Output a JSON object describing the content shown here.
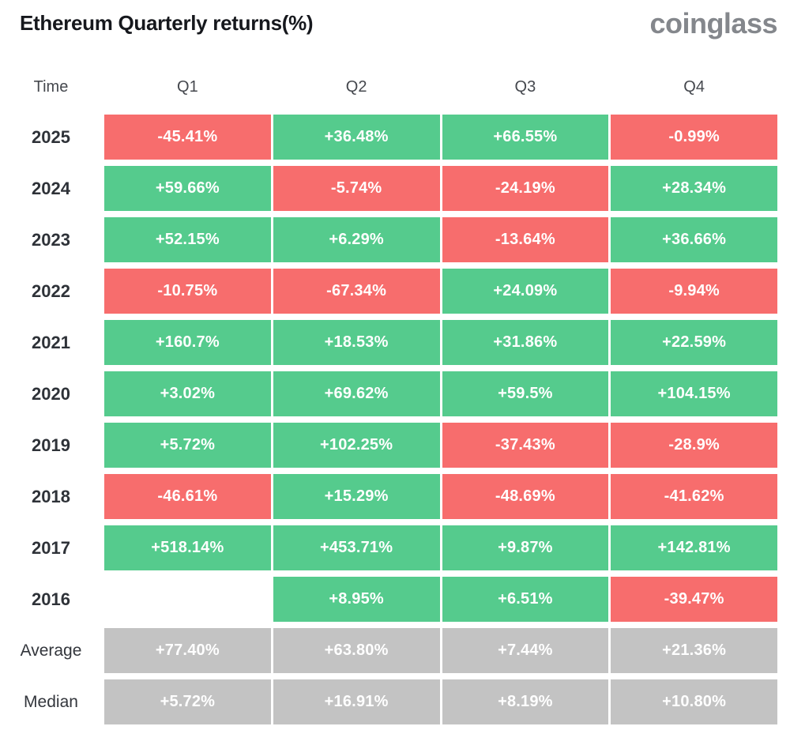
{
  "header": {
    "title": "Ethereum Quarterly returns(%)",
    "logo": "coinglass"
  },
  "colors": {
    "positive": "#55cb8d",
    "negative": "#f76d6d",
    "summary": "#c3c3c3"
  },
  "table": {
    "columns": [
      "Time",
      "Q1",
      "Q2",
      "Q3",
      "Q4"
    ],
    "rows": [
      {
        "label": "2025",
        "type": "year",
        "cells": [
          {
            "text": "-45.41%",
            "color": "negative"
          },
          {
            "text": "+36.48%",
            "color": "positive"
          },
          {
            "text": "+66.55%",
            "color": "positive"
          },
          {
            "text": "-0.99%",
            "color": "negative"
          }
        ]
      },
      {
        "label": "2024",
        "type": "year",
        "cells": [
          {
            "text": "+59.66%",
            "color": "positive"
          },
          {
            "text": "-5.74%",
            "color": "negative"
          },
          {
            "text": "-24.19%",
            "color": "negative"
          },
          {
            "text": "+28.34%",
            "color": "positive"
          }
        ]
      },
      {
        "label": "2023",
        "type": "year",
        "cells": [
          {
            "text": "+52.15%",
            "color": "positive"
          },
          {
            "text": "+6.29%",
            "color": "positive"
          },
          {
            "text": "-13.64%",
            "color": "negative"
          },
          {
            "text": "+36.66%",
            "color": "positive"
          }
        ]
      },
      {
        "label": "2022",
        "type": "year",
        "cells": [
          {
            "text": "-10.75%",
            "color": "negative"
          },
          {
            "text": "-67.34%",
            "color": "negative"
          },
          {
            "text": "+24.09%",
            "color": "positive"
          },
          {
            "text": "-9.94%",
            "color": "negative"
          }
        ]
      },
      {
        "label": "2021",
        "type": "year",
        "cells": [
          {
            "text": "+160.7%",
            "color": "positive"
          },
          {
            "text": "+18.53%",
            "color": "positive"
          },
          {
            "text": "+31.86%",
            "color": "positive"
          },
          {
            "text": "+22.59%",
            "color": "positive"
          }
        ]
      },
      {
        "label": "2020",
        "type": "year",
        "cells": [
          {
            "text": "+3.02%",
            "color": "positive"
          },
          {
            "text": "+69.62%",
            "color": "positive"
          },
          {
            "text": "+59.5%",
            "color": "positive"
          },
          {
            "text": "+104.15%",
            "color": "positive"
          }
        ]
      },
      {
        "label": "2019",
        "type": "year",
        "cells": [
          {
            "text": "+5.72%",
            "color": "positive"
          },
          {
            "text": "+102.25%",
            "color": "positive"
          },
          {
            "text": "-37.43%",
            "color": "negative"
          },
          {
            "text": "-28.9%",
            "color": "negative"
          }
        ]
      },
      {
        "label": "2018",
        "type": "year",
        "cells": [
          {
            "text": "-46.61%",
            "color": "negative"
          },
          {
            "text": "+15.29%",
            "color": "positive"
          },
          {
            "text": "-48.69%",
            "color": "negative"
          },
          {
            "text": "-41.62%",
            "color": "negative"
          }
        ]
      },
      {
        "label": "2017",
        "type": "year",
        "cells": [
          {
            "text": "+518.14%",
            "color": "positive"
          },
          {
            "text": "+453.71%",
            "color": "positive"
          },
          {
            "text": "+9.87%",
            "color": "positive"
          },
          {
            "text": "+142.81%",
            "color": "positive"
          }
        ]
      },
      {
        "label": "2016",
        "type": "year",
        "cells": [
          {
            "text": "",
            "color": "empty"
          },
          {
            "text": "+8.95%",
            "color": "positive"
          },
          {
            "text": "+6.51%",
            "color": "positive"
          },
          {
            "text": "-39.47%",
            "color": "negative"
          }
        ]
      },
      {
        "label": "Average",
        "type": "summary",
        "cells": [
          {
            "text": "+77.40%",
            "color": "summary"
          },
          {
            "text": "+63.80%",
            "color": "summary"
          },
          {
            "text": "+7.44%",
            "color": "summary"
          },
          {
            "text": "+21.36%",
            "color": "summary"
          }
        ]
      },
      {
        "label": "Median",
        "type": "summary",
        "cells": [
          {
            "text": "+5.72%",
            "color": "summary"
          },
          {
            "text": "+16.91%",
            "color": "summary"
          },
          {
            "text": "+8.19%",
            "color": "summary"
          },
          {
            "text": "+10.80%",
            "color": "summary"
          }
        ]
      }
    ]
  },
  "chart_data": {
    "type": "heatmap",
    "title": "Ethereum Quarterly returns(%)",
    "columns": [
      "Q1",
      "Q2",
      "Q3",
      "Q4"
    ],
    "rows": [
      "2025",
      "2024",
      "2023",
      "2022",
      "2021",
      "2020",
      "2019",
      "2018",
      "2017",
      "2016",
      "Average",
      "Median"
    ],
    "values": [
      [
        -45.41,
        36.48,
        66.55,
        -0.99
      ],
      [
        59.66,
        -5.74,
        -24.19,
        28.34
      ],
      [
        52.15,
        6.29,
        -13.64,
        36.66
      ],
      [
        -10.75,
        -67.34,
        24.09,
        -9.94
      ],
      [
        160.7,
        18.53,
        31.86,
        22.59
      ],
      [
        3.02,
        69.62,
        59.5,
        104.15
      ],
      [
        5.72,
        102.25,
        -37.43,
        -28.9
      ],
      [
        -46.61,
        15.29,
        -48.69,
        -41.62
      ],
      [
        518.14,
        453.71,
        9.87,
        142.81
      ],
      [
        null,
        8.95,
        6.51,
        -39.47
      ],
      [
        77.4,
        63.8,
        7.44,
        21.36
      ],
      [
        5.72,
        16.91,
        8.19,
        10.8
      ]
    ],
    "unit": "%",
    "color_rule": "positive=green, negative=red, summary rows=gray, missing=blank"
  }
}
